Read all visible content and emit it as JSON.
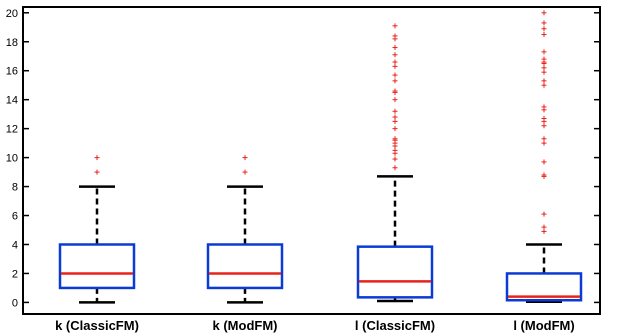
{
  "chart_data": {
    "type": "box",
    "title": "",
    "xlabel": "",
    "ylabel": "",
    "ylim": [
      -0.8,
      20.4
    ],
    "yticks": [
      0,
      2,
      4,
      6,
      8,
      10,
      12,
      14,
      16,
      18,
      20
    ],
    "grid": false,
    "legend": "none",
    "colors": {
      "box": "#0b3bd6",
      "median": "#e8231b",
      "whisker": "#000000",
      "outlier": "#e8231b"
    },
    "categories": [
      "k (ClassicFM)",
      "k (ModFM)",
      "l (ClassicFM)",
      "l (ModFM)"
    ],
    "boxes": [
      {
        "name": "k (ClassicFM)",
        "whisker_low": 0,
        "q1": 1,
        "median": 2,
        "q3": 4,
        "whisker_high": 8,
        "outliers": [
          9,
          10
        ]
      },
      {
        "name": "k (ModFM)",
        "whisker_low": 0,
        "q1": 1,
        "median": 2,
        "q3": 4,
        "whisker_high": 8,
        "outliers": [
          9,
          10
        ]
      },
      {
        "name": "l (ClassicFM)",
        "whisker_low": 0.1,
        "q1": 0.35,
        "median": 1.45,
        "q3": 3.85,
        "whisker_high": 8.7,
        "outliers": [
          9.3,
          9.9,
          10.3,
          10.5,
          10.8,
          11.0,
          11.2,
          11.3,
          12.0,
          12.5,
          12.8,
          13.2,
          14.0,
          14.5,
          14.6,
          15.3,
          15.7,
          16.3,
          16.6,
          17.1,
          17.6,
          18.2,
          18.4,
          19.1
        ]
      },
      {
        "name": "l (ModFM)",
        "whisker_low": 0.05,
        "q1": 0.15,
        "median": 0.4,
        "q3": 2.0,
        "whisker_high": 4.0,
        "outliers": [
          4.9,
          5.2,
          6.1,
          8.7,
          8.8,
          9.7,
          11.0,
          11.3,
          12.2,
          12.5,
          12.7,
          13.3,
          13.5,
          15.0,
          15.3,
          15.9,
          16.2,
          16.5,
          16.6,
          16.8,
          17.3,
          18.5,
          18.9,
          19.3,
          20.0
        ]
      }
    ]
  }
}
